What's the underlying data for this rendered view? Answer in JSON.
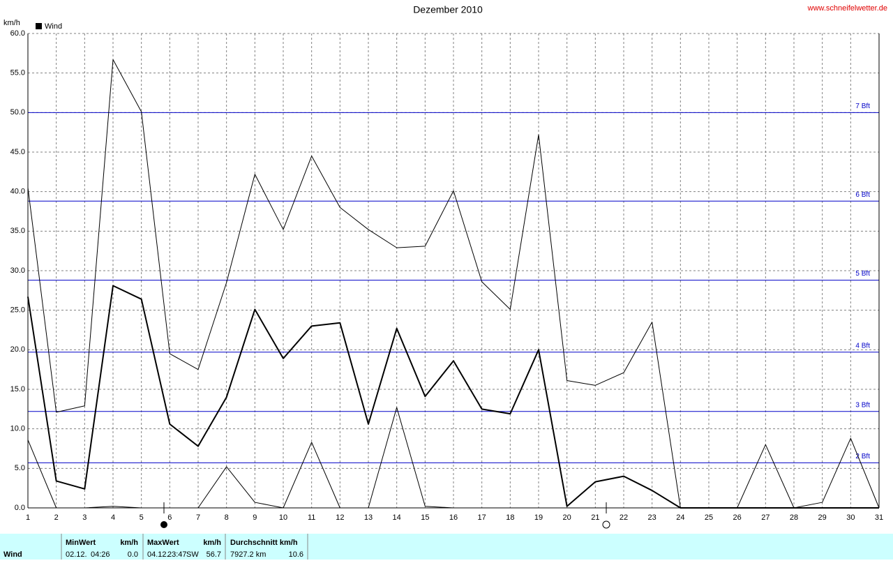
{
  "chart_data": {
    "type": "line",
    "title": "Dezember 2010",
    "source": "www.schneifelwetter.de",
    "y_label": "km/h",
    "legend_text": "Wind",
    "categories": [
      "1",
      "2",
      "3",
      "4",
      "5",
      "6",
      "7",
      "8",
      "9",
      "10",
      "11",
      "12",
      "13",
      "14",
      "15",
      "16",
      "17",
      "18",
      "19",
      "20",
      "21",
      "22",
      "23",
      "24",
      "25",
      "26",
      "27",
      "28",
      "29",
      "30",
      "31"
    ],
    "series": [
      {
        "color": "#000000",
        "width": 1,
        "values": [
          40.5,
          12.1,
          12.9,
          56.7,
          50.1,
          19.5,
          17.5,
          28.5,
          42.2,
          35.2,
          44.5,
          38.0,
          35.2,
          32.9,
          33.1,
          40.1,
          28.6,
          25.1,
          47.2,
          16.1,
          15.5,
          17.1,
          23.5,
          0,
          0,
          0,
          8.0,
          0,
          0.7,
          8.8,
          0
        ]
      },
      {
        "color": "#000000",
        "width": 2,
        "values": [
          26.7,
          3.4,
          2.4,
          28.1,
          26.4,
          10.6,
          7.8,
          14.0,
          25.1,
          18.9,
          23.0,
          23.4,
          10.6,
          22.7,
          14.1,
          18.6,
          12.5,
          11.9,
          20.0,
          0.2,
          3.3,
          4.0,
          2.2,
          0,
          0,
          0,
          0,
          0,
          0,
          0,
          0
        ]
      },
      {
        "color": "#000000",
        "width": 1,
        "values": [
          8.6,
          0,
          0,
          0.2,
          0,
          0,
          0,
          5.2,
          0.7,
          0,
          8.3,
          0,
          0,
          12.7,
          0.2,
          0,
          0,
          0,
          0,
          0,
          0,
          0,
          0,
          0,
          0,
          0,
          0,
          0,
          0,
          0,
          0
        ]
      }
    ],
    "ylim": [
      0,
      60
    ],
    "yticks": [
      {
        "value": 0,
        "label": "0.0"
      },
      {
        "value": 5,
        "label": "5.0"
      },
      {
        "value": 10,
        "label": "10.0"
      },
      {
        "value": 15,
        "label": "15.0"
      },
      {
        "value": 20,
        "label": "20.0"
      },
      {
        "value": 25,
        "label": "25.0"
      },
      {
        "value": 30,
        "label": "30.0"
      },
      {
        "value": 35,
        "label": "35.0"
      },
      {
        "value": 40,
        "label": "40.0"
      },
      {
        "value": 45,
        "label": "45.0"
      },
      {
        "value": 50,
        "label": "50.0"
      },
      {
        "value": 55,
        "label": "55.0"
      },
      {
        "value": 60,
        "label": "60.0"
      }
    ],
    "grid": true,
    "reference_color": "#0000c8",
    "reference_lines": [
      {
        "value": 50,
        "label": "7 Bft"
      },
      {
        "value": 38.8,
        "label": "6 Bft"
      },
      {
        "value": 28.8,
        "label": "5 Bft"
      },
      {
        "value": 19.7,
        "label": "4 Bft"
      },
      {
        "value": 12.2,
        "label": "3 Bft"
      },
      {
        "value": 5.7,
        "label": "2 Bft"
      }
    ]
  },
  "table": {
    "label": "Wind",
    "min": {
      "title": "MinWert",
      "unit": "km/h",
      "date": "02.12.",
      "time": "04:26",
      "value": "0.0"
    },
    "max": {
      "title": "MaxWert",
      "unit": "km/h",
      "date": "04.12.",
      "time": "23:47",
      "dir": "SW",
      "value": "56.7"
    },
    "avg": {
      "title": "Durchschnitt km/h",
      "distance": "7927.2 km",
      "value": "10.6"
    }
  }
}
